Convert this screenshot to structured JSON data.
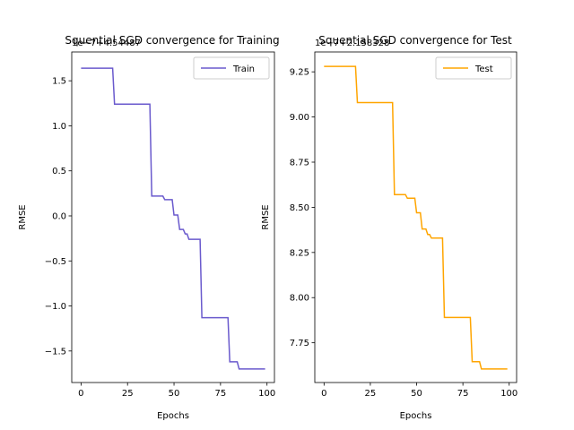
{
  "chart_data": [
    {
      "type": "line",
      "title": "Squential SGD convergence for Training",
      "xlabel": "Epochs",
      "ylabel": "RMSE",
      "offset_text": "1e−7+4.54487",
      "xlim": [
        -5,
        104
      ],
      "ylim": [
        -1.85,
        1.82
      ],
      "xticks": [
        0,
        25,
        50,
        75,
        100
      ],
      "xtick_labels": [
        "0",
        "25",
        "50",
        "75",
        "100"
      ],
      "yticks": [
        -1.5,
        -1.0,
        -0.5,
        0.0,
        0.5,
        1.0,
        1.5
      ],
      "ytick_labels": [
        "−1.5",
        "−1.0",
        "−0.5",
        "0.0",
        "0.5",
        "1.0",
        "1.5"
      ],
      "grid": false,
      "legend_position": "top-right",
      "series": [
        {
          "name": "Train",
          "color": "#6a5acd",
          "x": [
            0,
            17,
            18,
            37,
            38,
            44,
            45,
            49,
            50,
            52,
            53,
            55,
            56,
            57,
            58,
            64,
            65,
            79,
            80,
            84,
            85,
            99
          ],
          "y": [
            1.64,
            1.64,
            1.24,
            1.24,
            0.22,
            0.22,
            0.18,
            0.18,
            0.01,
            0.01,
            -0.15,
            -0.15,
            -0.2,
            -0.2,
            -0.26,
            -0.26,
            -1.13,
            -1.13,
            -1.62,
            -1.62,
            -1.7,
            -1.7
          ]
        }
      ]
    },
    {
      "type": "line",
      "title": "Squential SGD convergence for Test",
      "xlabel": "Epochs",
      "ylabel": "RMSE",
      "offset_text": "1e−7+2.158328",
      "xlim": [
        -5,
        104
      ],
      "ylim": [
        7.53,
        9.36
      ],
      "xticks": [
        0,
        25,
        50,
        75,
        100
      ],
      "xtick_labels": [
        "0",
        "25",
        "50",
        "75",
        "100"
      ],
      "yticks": [
        7.75,
        8.0,
        8.25,
        8.5,
        8.75,
        9.0,
        9.25
      ],
      "ytick_labels": [
        "7.75",
        "8.00",
        "8.25",
        "8.50",
        "8.75",
        "9.00",
        "9.25"
      ],
      "grid": false,
      "legend_position": "top-right",
      "series": [
        {
          "name": "Test",
          "color": "#ffa500",
          "x": [
            0,
            17,
            18,
            37,
            38,
            44,
            45,
            49,
            50,
            52,
            53,
            55,
            56,
            57,
            58,
            64,
            65,
            79,
            80,
            84,
            85,
            99
          ],
          "y": [
            9.28,
            9.28,
            9.08,
            9.08,
            8.57,
            8.57,
            8.55,
            8.55,
            8.47,
            8.47,
            8.38,
            8.38,
            8.35,
            8.35,
            8.33,
            8.33,
            7.89,
            7.89,
            7.645,
            7.645,
            7.605,
            7.605
          ]
        }
      ]
    }
  ]
}
